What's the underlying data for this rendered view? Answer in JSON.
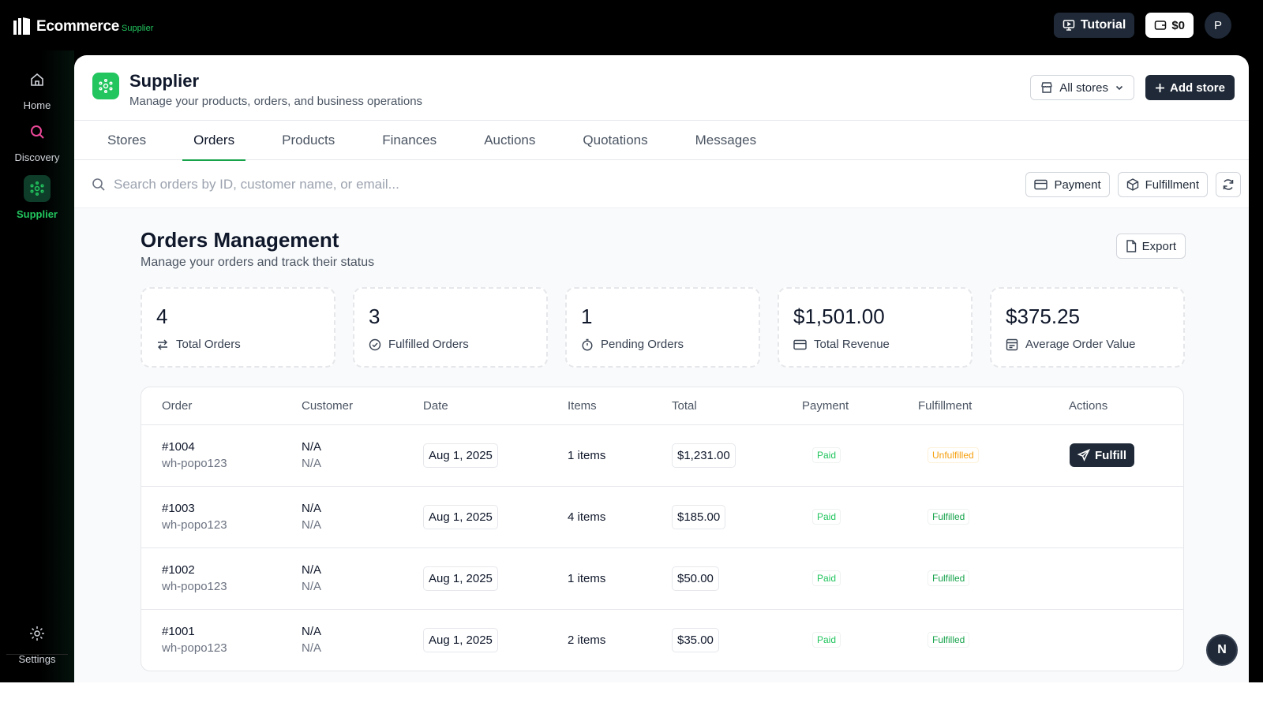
{
  "topbar": {
    "brand_name": "Ecommerce",
    "brand_sub": "Supplier",
    "tutorial_label": "Tutorial",
    "wallet_label": "$0",
    "avatar_initial": "P"
  },
  "sidebar": {
    "items": [
      {
        "label": "Home",
        "icon": "home-icon"
      },
      {
        "label": "Discovery",
        "icon": "search-icon"
      },
      {
        "label": "Supplier",
        "icon": "supplier-icon",
        "active": true
      }
    ],
    "settings_label": "Settings"
  },
  "header": {
    "title": "Supplier",
    "subtitle": "Manage your products, orders, and business operations",
    "store_select": "All stores",
    "add_store": "Add store"
  },
  "tabs": [
    "Stores",
    "Orders",
    "Products",
    "Finances",
    "Auctions",
    "Quotations",
    "Messages"
  ],
  "active_tab": "Orders",
  "search": {
    "placeholder": "Search orders by ID, customer name, or email...",
    "payment_label": "Payment",
    "fulfillment_label": "Fulfillment"
  },
  "orders": {
    "title": "Orders Management",
    "subtitle": "Manage your orders and track their status",
    "export_label": "Export",
    "stats": [
      {
        "value": "4",
        "label": "Total Orders",
        "icon": "arrows-icon"
      },
      {
        "value": "3",
        "label": "Fulfilled Orders",
        "icon": "check-circle-icon"
      },
      {
        "value": "1",
        "label": "Pending Orders",
        "icon": "timer-icon"
      },
      {
        "value": "$1,501.00",
        "label": "Total Revenue",
        "icon": "card-icon"
      },
      {
        "value": "$375.25",
        "label": "Average Order Value",
        "icon": "receipt-icon"
      }
    ],
    "columns": [
      "Order",
      "Customer",
      "Date",
      "Items",
      "Total",
      "Payment",
      "Fulfillment",
      "Actions"
    ],
    "rows": [
      {
        "id": "#1004",
        "warehouse": "wh-popo123",
        "customer": "N/A",
        "email": "N/A",
        "date": "Aug 1, 2025",
        "items": "1 items",
        "total": "$1,231.00",
        "payment": "Paid",
        "fulfillment": "Unfulfilled",
        "action": "Fulfill"
      },
      {
        "id": "#1003",
        "warehouse": "wh-popo123",
        "customer": "N/A",
        "email": "N/A",
        "date": "Aug 1, 2025",
        "items": "4 items",
        "total": "$185.00",
        "payment": "Paid",
        "fulfillment": "Fulfilled"
      },
      {
        "id": "#1002",
        "warehouse": "wh-popo123",
        "customer": "N/A",
        "email": "N/A",
        "date": "Aug 1, 2025",
        "items": "1 items",
        "total": "$50.00",
        "payment": "Paid",
        "fulfillment": "Fulfilled"
      },
      {
        "id": "#1001",
        "warehouse": "wh-popo123",
        "customer": "N/A",
        "email": "N/A",
        "date": "Aug 1, 2025",
        "items": "2 items",
        "total": "$35.00",
        "payment": "Paid",
        "fulfillment": "Fulfilled"
      }
    ]
  },
  "fab_label": "N",
  "colors": {
    "accent": "#22c55e",
    "dark_button": "#1f2937",
    "warning": "#f59e0b"
  }
}
